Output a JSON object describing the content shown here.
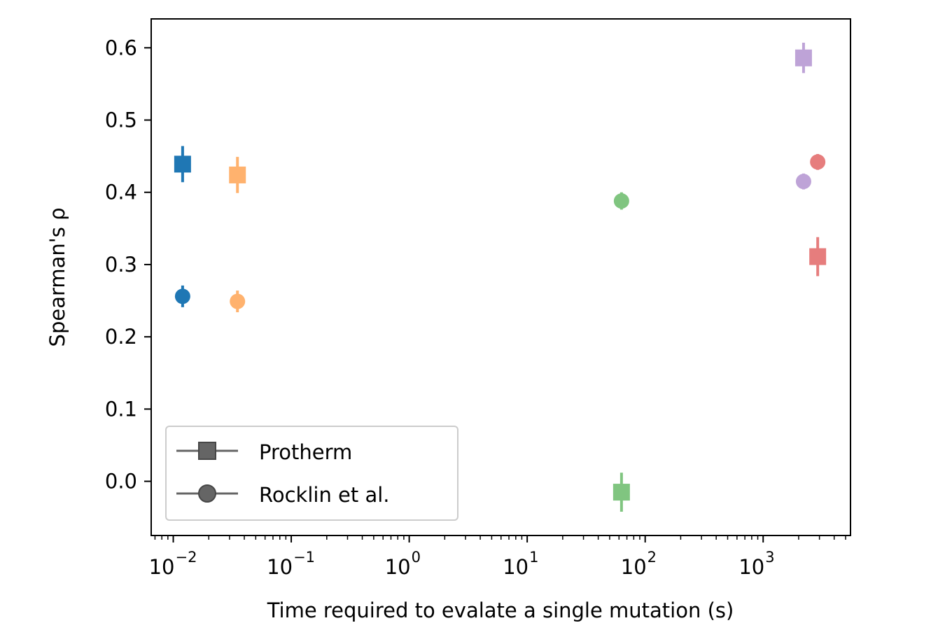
{
  "chart_data": {
    "type": "scatter",
    "title": "",
    "xlabel": "Time required to evalate a single mutation (s)",
    "ylabel": "Spearman's ρ",
    "xscale": "log",
    "xlim": [
      0.0065,
      5500
    ],
    "ylim": [
      -0.075,
      0.64
    ],
    "xticks": [
      0.01,
      0.1,
      1,
      10,
      100,
      1000
    ],
    "xtick_labels": [
      {
        "base": "10",
        "exp": "−2"
      },
      {
        "base": "10",
        "exp": "−1"
      },
      {
        "base": "10",
        "exp": "0"
      },
      {
        "base": "10",
        "exp": "1"
      },
      {
        "base": "10",
        "exp": "2"
      },
      {
        "base": "10",
        "exp": "3"
      }
    ],
    "yticks": [
      0.0,
      0.1,
      0.2,
      0.3,
      0.4,
      0.5,
      0.6
    ],
    "ytick_labels": [
      "0.0",
      "0.1",
      "0.2",
      "0.3",
      "0.4",
      "0.5",
      "0.6"
    ],
    "grid": false,
    "legend": {
      "placement": "lower-left",
      "entries": [
        {
          "label": "Protherm",
          "marker": "square"
        },
        {
          "label": "Rocklin et al.",
          "marker": "circle"
        }
      ]
    },
    "points": [
      {
        "dataset": "Protherm",
        "marker": "square",
        "x": 0.012,
        "y": 0.439,
        "err": 0.025,
        "color": "#1f77b4",
        "alpha": 1.0
      },
      {
        "dataset": "Rocklin et al.",
        "marker": "circle",
        "x": 0.012,
        "y": 0.256,
        "err": 0.015,
        "color": "#1f77b4",
        "alpha": 1.0
      },
      {
        "dataset": "Protherm",
        "marker": "square",
        "x": 0.035,
        "y": 0.424,
        "err": 0.025,
        "color": "#ff7f0e",
        "alpha": 0.6
      },
      {
        "dataset": "Rocklin et al.",
        "marker": "circle",
        "x": 0.035,
        "y": 0.249,
        "err": 0.015,
        "color": "#ff7f0e",
        "alpha": 0.6
      },
      {
        "dataset": "Protherm",
        "marker": "square",
        "x": 63,
        "y": -0.015,
        "err": 0.027,
        "color": "#2ca02c",
        "alpha": 0.6
      },
      {
        "dataset": "Rocklin et al.",
        "marker": "circle",
        "x": 63,
        "y": 0.388,
        "err": 0.012,
        "color": "#2ca02c",
        "alpha": 0.6
      },
      {
        "dataset": "Protherm",
        "marker": "square",
        "x": 2200,
        "y": 0.586,
        "err": 0.021,
        "color": "#9467bd",
        "alpha": 0.6
      },
      {
        "dataset": "Rocklin et al.",
        "marker": "circle",
        "x": 2200,
        "y": 0.415,
        "err": 0.011,
        "color": "#9467bd",
        "alpha": 0.6
      },
      {
        "dataset": "Protherm",
        "marker": "square",
        "x": 2900,
        "y": 0.311,
        "err": 0.027,
        "color": "#d62728",
        "alpha": 0.6
      },
      {
        "dataset": "Rocklin et al.",
        "marker": "circle",
        "x": 2900,
        "y": 0.442,
        "err": 0.011,
        "color": "#d62728",
        "alpha": 0.6
      }
    ],
    "legend_marker_color": "#555555"
  }
}
